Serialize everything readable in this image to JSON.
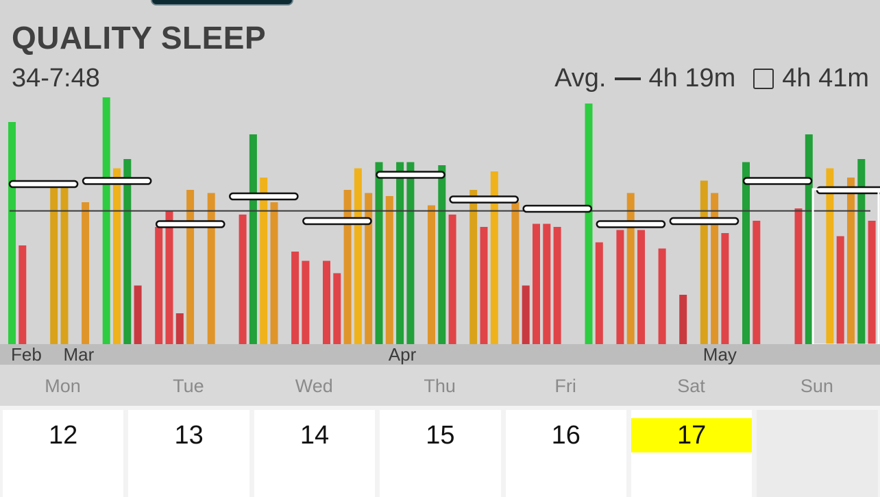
{
  "header": {
    "title": "QUALITY SLEEP",
    "range": "34-7:48",
    "avg_label": "Avg.",
    "avg_line_value": "4h 19m",
    "avg_box_value": "4h 41m"
  },
  "colors": {
    "background": "#d4d4d4",
    "green_bright": "#2ecc40",
    "green_dark": "#22a03a",
    "orange": "#e0952a",
    "gold": "#d9a21a",
    "yellow": "#f0b21a",
    "red": "#e04448",
    "dark_red": "#c93a40",
    "today_highlight": "#ffff00"
  },
  "chart_data": {
    "type": "bar",
    "title": "QUALITY SLEEP",
    "subtitle": "34-7:48",
    "unit": "hours",
    "ylim": [
      0,
      8
    ],
    "average_line": 4.32,
    "months": [
      {
        "label": "Feb",
        "bar_index": 0
      },
      {
        "label": "Mar",
        "bar_index": 5
      },
      {
        "label": "Apr",
        "bar_index": 36
      },
      {
        "label": "May",
        "bar_index": 66
      }
    ],
    "bars": [
      {
        "x": 0,
        "value": 7.2,
        "color": "green_bright"
      },
      {
        "x": 1,
        "value": 3.2,
        "color": "red"
      },
      {
        "x": 4,
        "value": 5.1,
        "color": "gold"
      },
      {
        "x": 5,
        "value": 5.1,
        "color": "gold"
      },
      {
        "x": 7,
        "value": 4.6,
        "color": "orange"
      },
      {
        "x": 9,
        "value": 8.0,
        "color": "green_bright"
      },
      {
        "x": 10,
        "value": 5.7,
        "color": "yellow"
      },
      {
        "x": 11,
        "value": 6.0,
        "color": "green_dark"
      },
      {
        "x": 12,
        "value": 1.9,
        "color": "dark_red"
      },
      {
        "x": 14,
        "value": 3.8,
        "color": "red"
      },
      {
        "x": 15,
        "value": 4.3,
        "color": "red"
      },
      {
        "x": 16,
        "value": 1.0,
        "color": "dark_red"
      },
      {
        "x": 17,
        "value": 5.0,
        "color": "orange"
      },
      {
        "x": 19,
        "value": 4.9,
        "color": "orange"
      },
      {
        "x": 22,
        "value": 4.2,
        "color": "red"
      },
      {
        "x": 23,
        "value": 6.8,
        "color": "green_dark"
      },
      {
        "x": 24,
        "value": 5.4,
        "color": "yellow"
      },
      {
        "x": 25,
        "value": 4.6,
        "color": "orange"
      },
      {
        "x": 27,
        "value": 3.0,
        "color": "red"
      },
      {
        "x": 28,
        "value": 2.7,
        "color": "red"
      },
      {
        "x": 30,
        "value": 2.7,
        "color": "red"
      },
      {
        "x": 31,
        "value": 2.3,
        "color": "red"
      },
      {
        "x": 32,
        "value": 5.0,
        "color": "orange"
      },
      {
        "x": 33,
        "value": 5.7,
        "color": "yellow"
      },
      {
        "x": 34,
        "value": 4.9,
        "color": "orange"
      },
      {
        "x": 35,
        "value": 5.9,
        "color": "green_dark"
      },
      {
        "x": 36,
        "value": 4.8,
        "color": "orange"
      },
      {
        "x": 37,
        "value": 5.9,
        "color": "green_dark"
      },
      {
        "x": 38,
        "value": 5.9,
        "color": "green_dark"
      },
      {
        "x": 40,
        "value": 4.5,
        "color": "orange"
      },
      {
        "x": 41,
        "value": 5.8,
        "color": "green_dark"
      },
      {
        "x": 42,
        "value": 4.2,
        "color": "red"
      },
      {
        "x": 44,
        "value": 5.0,
        "color": "gold"
      },
      {
        "x": 45,
        "value": 3.8,
        "color": "red"
      },
      {
        "x": 46,
        "value": 5.6,
        "color": "yellow"
      },
      {
        "x": 48,
        "value": 4.6,
        "color": "orange"
      },
      {
        "x": 49,
        "value": 1.9,
        "color": "dark_red"
      },
      {
        "x": 50,
        "value": 3.9,
        "color": "red"
      },
      {
        "x": 51,
        "value": 3.9,
        "color": "red"
      },
      {
        "x": 52,
        "value": 3.8,
        "color": "red"
      },
      {
        "x": 55,
        "value": 7.8,
        "color": "green_bright"
      },
      {
        "x": 56,
        "value": 3.3,
        "color": "red"
      },
      {
        "x": 58,
        "value": 3.7,
        "color": "red"
      },
      {
        "x": 59,
        "value": 4.9,
        "color": "orange"
      },
      {
        "x": 60,
        "value": 3.7,
        "color": "red"
      },
      {
        "x": 62,
        "value": 3.1,
        "color": "red"
      },
      {
        "x": 64,
        "value": 1.6,
        "color": "dark_red"
      },
      {
        "x": 66,
        "value": 5.3,
        "color": "gold"
      },
      {
        "x": 67,
        "value": 4.9,
        "color": "orange"
      },
      {
        "x": 68,
        "value": 3.6,
        "color": "red"
      },
      {
        "x": 70,
        "value": 5.9,
        "color": "green_dark"
      },
      {
        "x": 71,
        "value": 4.0,
        "color": "red"
      },
      {
        "x": 75,
        "value": 4.4,
        "color": "red"
      },
      {
        "x": 76,
        "value": 6.8,
        "color": "green_dark"
      },
      {
        "x": 78,
        "value": 5.7,
        "color": "yellow"
      },
      {
        "x": 79,
        "value": 3.5,
        "color": "red"
      },
      {
        "x": 80,
        "value": 5.4,
        "color": "orange"
      },
      {
        "x": 81,
        "value": 6.0,
        "color": "green_dark"
      },
      {
        "x": 82,
        "value": 4.0,
        "color": "red"
      }
    ],
    "weekly_averages": [
      5.2,
      5.3,
      3.9,
      4.8,
      4.0,
      5.5,
      4.7,
      4.4,
      3.9,
      4.0,
      5.3,
      5.0
    ],
    "selected_week": 11
  },
  "week": {
    "days": [
      "Mon",
      "Tue",
      "Wed",
      "Thu",
      "Fri",
      "Sat",
      "Sun"
    ],
    "dates": [
      "12",
      "13",
      "14",
      "15",
      "16",
      "17",
      ""
    ],
    "today": "17"
  }
}
